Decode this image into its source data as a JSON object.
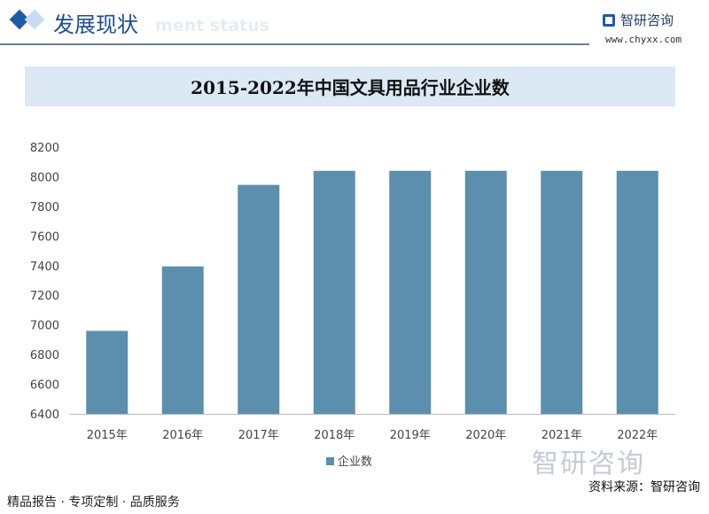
{
  "header": {
    "title": "发展现状",
    "subtitle_faint": "ment status",
    "logo": "智研咨询",
    "url": "www.chyxx.com"
  },
  "footer": {
    "left": "精品报告 · 专项定制 · 品质服务",
    "source": "资料来源：智研咨询",
    "watermark": "智研咨询"
  },
  "colors": {
    "bar": "#5b8fad",
    "title_bg": "#dce9f5",
    "accent": "#1f5aa6"
  },
  "chart_data": {
    "type": "bar",
    "title": "2015-2022年中国文具用品行业企业数",
    "categories": [
      "2015年",
      "2016年",
      "2017年",
      "2018年",
      "2019年",
      "2020年",
      "2021年",
      "2022年"
    ],
    "series": [
      {
        "name": "企业数",
        "values": [
          6960,
          7395,
          7945,
          8040,
          8040,
          8040,
          8040,
          8040
        ]
      }
    ],
    "ylim": [
      6400,
      8200
    ],
    "yticks": [
      6400,
      6600,
      6800,
      7000,
      7200,
      7400,
      7600,
      7800,
      8000,
      8200
    ],
    "grid": false,
    "legend": "bottom-center"
  }
}
